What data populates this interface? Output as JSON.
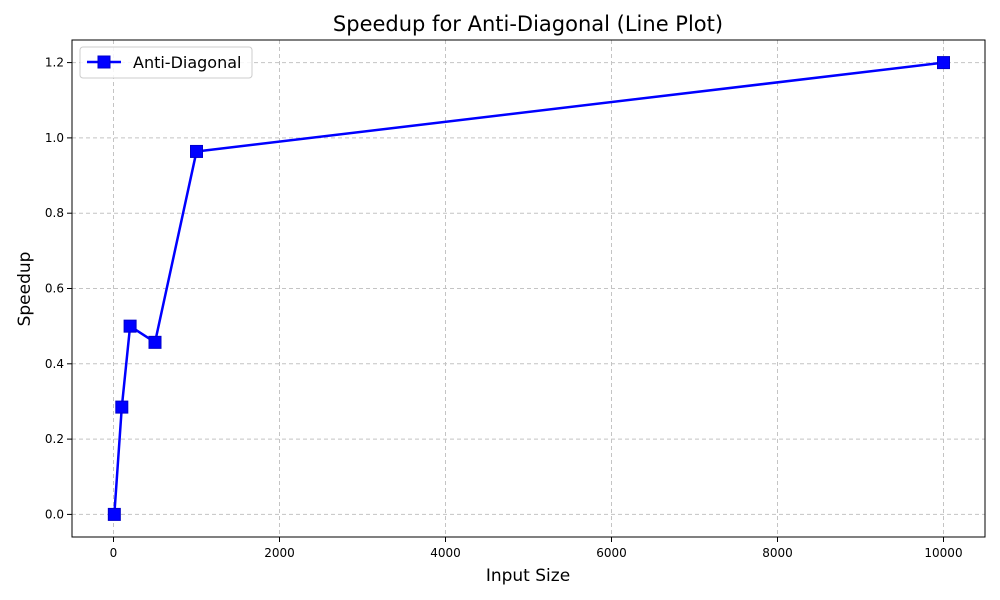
{
  "chart_data": {
    "type": "line",
    "title": "Speedup for Anti-Diagonal (Line Plot)",
    "xlabel": "Input Size",
    "ylabel": "Speedup",
    "xlim": [
      -500,
      10500
    ],
    "ylim": [
      -0.06,
      1.26
    ],
    "x_ticks": [
      0,
      2000,
      4000,
      6000,
      8000,
      10000
    ],
    "y_ticks": [
      0.0,
      0.2,
      0.4,
      0.6,
      0.8,
      1.0,
      1.2
    ],
    "x_tick_labels": [
      "0",
      "2000",
      "4000",
      "6000",
      "8000",
      "10000"
    ],
    "y_tick_labels": [
      "0.0",
      "0.2",
      "0.4",
      "0.6",
      "0.8",
      "1.0",
      "1.2"
    ],
    "grid": true,
    "legend_position": "top-left",
    "series": [
      {
        "name": "Anti-Diagonal",
        "color": "#0000ff",
        "marker": "square",
        "x": [
          10,
          100,
          200,
          500,
          1000,
          10000
        ],
        "y": [
          0.0,
          0.285,
          0.5,
          0.457,
          0.964,
          1.2
        ]
      }
    ]
  }
}
